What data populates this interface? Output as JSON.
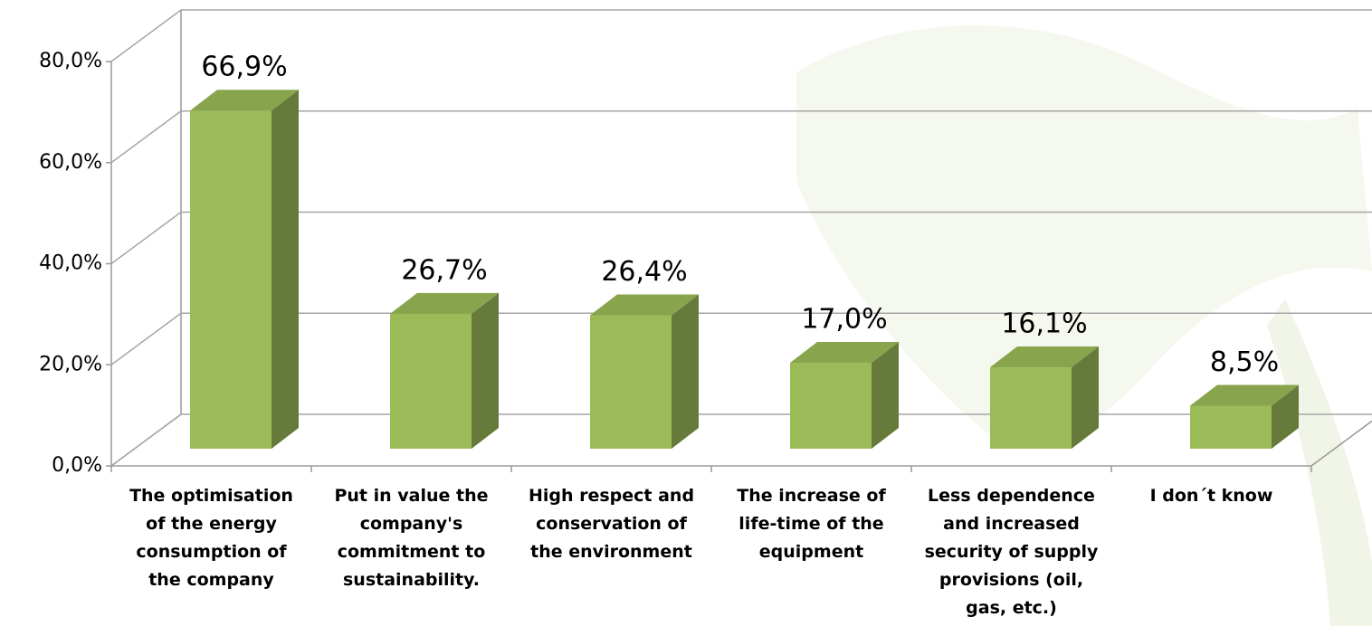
{
  "chart_data": {
    "type": "bar3d",
    "categories": [
      "The optimisation of the energy consumption of the company",
      "Put in value the company's commitment to sustainability.",
      "High respect and conservation of the environment",
      "The increase of life-time of the equipment",
      "Less dependence and increased security of supply provisions (oil, gas, etc.)",
      "I don´t know"
    ],
    "values": [
      66.9,
      26.7,
      26.4,
      17.0,
      16.1,
      8.5
    ],
    "value_labels": [
      "66,9%",
      "26,7%",
      "26,4%",
      "17,0%",
      "16,1%",
      "8,5%"
    ],
    "color": "#9bbb59",
    "ylim": [
      0,
      80
    ],
    "yticks": [
      {
        "value": 0,
        "label": "0,0%"
      },
      {
        "value": 20,
        "label": "20,0%"
      },
      {
        "value": 40,
        "label": "40,0%"
      },
      {
        "value": 60,
        "label": "60,0%"
      },
      {
        "value": 80,
        "label": "80,0%"
      }
    ],
    "grid": true
  }
}
